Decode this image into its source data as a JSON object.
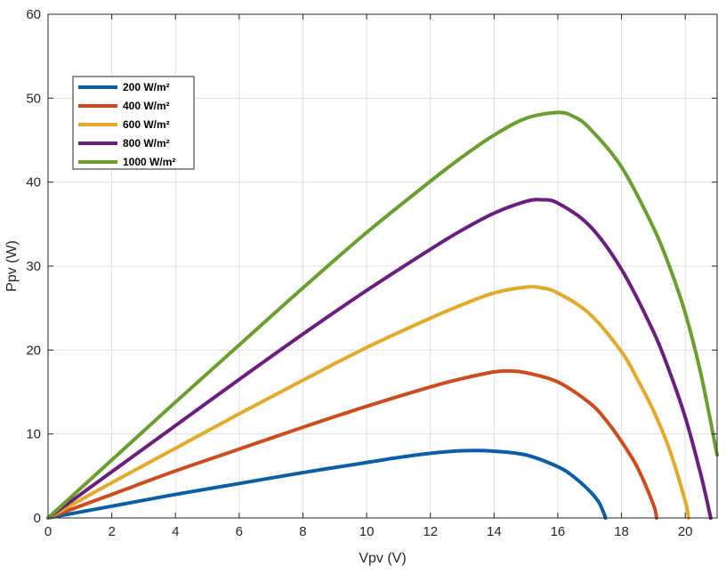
{
  "chart_data": {
    "type": "line",
    "xlabel": "Vpv (V)",
    "ylabel": "Ppv (W)",
    "xlim": [
      0,
      21
    ],
    "ylim": [
      0,
      60
    ],
    "xticks": [
      0,
      2,
      4,
      6,
      8,
      10,
      12,
      14,
      16,
      18,
      20
    ],
    "yticks": [
      0,
      10,
      20,
      30,
      40,
      50,
      60
    ],
    "grid": true,
    "legend_position": "top-left",
    "series": [
      {
        "name": "200 W/m²",
        "color": "#0a5ea6",
        "x": [
          0,
          2,
          4,
          6,
          8,
          10,
          11,
          12,
          13,
          14,
          15,
          16,
          16.5,
          17,
          17.3,
          17.5
        ],
        "y": [
          0,
          1.4,
          2.8,
          4.1,
          5.4,
          6.6,
          7.2,
          7.7,
          8.0,
          7.95,
          7.5,
          6.1,
          4.9,
          3.2,
          1.8,
          0
        ]
      },
      {
        "name": "400 W/m²",
        "color": "#cc4c1e",
        "x": [
          0,
          2,
          4,
          6,
          8,
          10,
          12,
          13,
          14,
          14.5,
          15,
          16,
          17,
          17.5,
          18,
          18.5,
          19,
          19.1
        ],
        "y": [
          0,
          2.8,
          5.6,
          8.2,
          10.8,
          13.3,
          15.6,
          16.6,
          17.4,
          17.5,
          17.3,
          16.2,
          13.7,
          11.7,
          9.1,
          6.0,
          1.6,
          0
        ]
      },
      {
        "name": "600 W/m²",
        "color": "#e3a92b",
        "x": [
          0,
          2,
          4,
          6,
          8,
          10,
          12,
          13,
          14,
          15,
          15.5,
          16,
          17,
          18,
          18.5,
          19,
          19.5,
          20,
          20.1
        ],
        "y": [
          0,
          4.2,
          8.3,
          12.4,
          16.4,
          20.3,
          23.8,
          25.4,
          26.8,
          27.5,
          27.4,
          26.8,
          24.3,
          19.8,
          16.5,
          12.8,
          8.2,
          2.0,
          0
        ]
      },
      {
        "name": "800 W/m²",
        "color": "#6a1f7e",
        "x": [
          0,
          2,
          4,
          6,
          8,
          10,
          12,
          13,
          14,
          15,
          15.5,
          16,
          17,
          18,
          19,
          19.5,
          20,
          20.5,
          20.8
        ],
        "y": [
          0,
          5.5,
          11.0,
          16.5,
          21.9,
          27.1,
          32.0,
          34.3,
          36.3,
          37.7,
          37.9,
          37.5,
          34.8,
          29.6,
          22.2,
          17.5,
          12.0,
          5.0,
          0
        ]
      },
      {
        "name": "1000 W/m²",
        "color": "#6a9e2e",
        "x": [
          0,
          2,
          4,
          6,
          8,
          10,
          12,
          13,
          14,
          15,
          16,
          16.5,
          17,
          18,
          19,
          19.5,
          20,
          20.5,
          21
        ],
        "y": [
          0,
          6.9,
          13.8,
          20.6,
          27.4,
          34.0,
          40.1,
          43.0,
          45.6,
          47.6,
          48.3,
          47.8,
          46.4,
          41.8,
          34.6,
          30.0,
          24.4,
          17.0,
          7.5
        ]
      }
    ]
  }
}
